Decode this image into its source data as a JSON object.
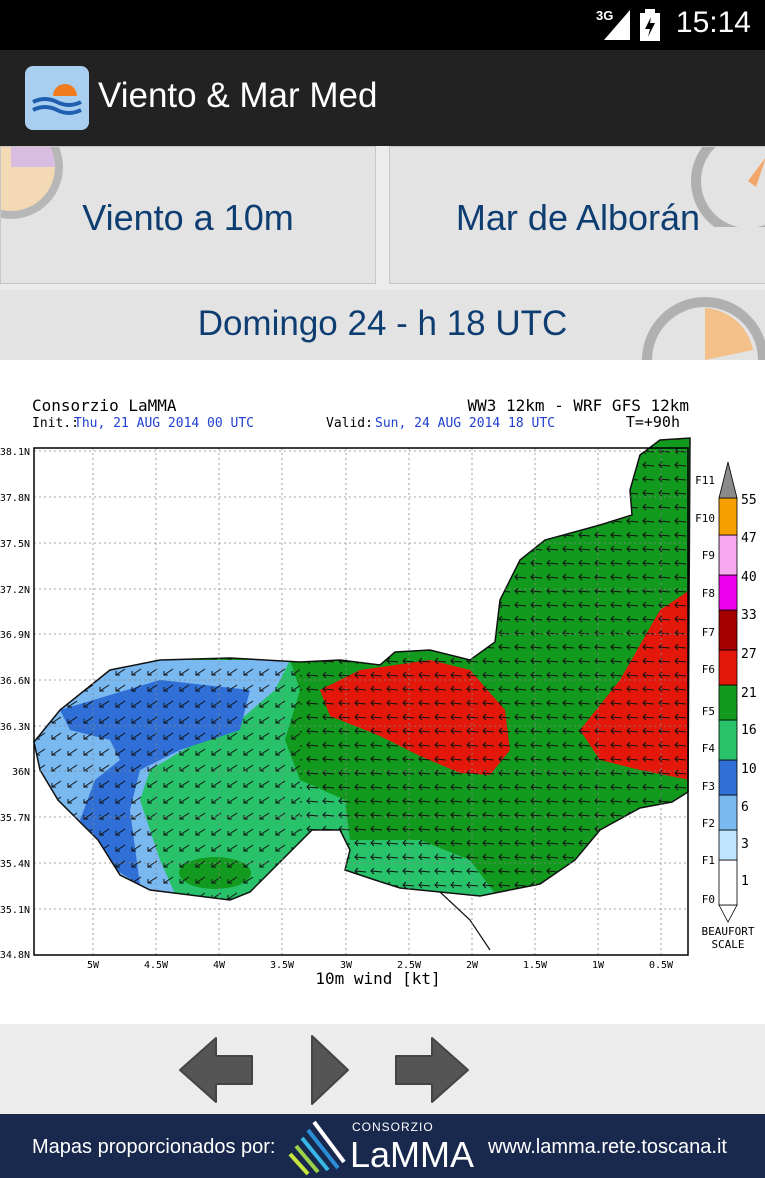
{
  "status_bar": {
    "network": "3G",
    "time": "15:14"
  },
  "app": {
    "title": "Viento & Mar Med"
  },
  "buttons": {
    "wind": "Viento a 10m",
    "sea": "Mar de Alborán"
  },
  "date_label": "Domingo 24 - h 18 UTC",
  "map": {
    "header_left": "Consorzio LaMMA",
    "header_right": "WW3 12km - WRF GFS 12km",
    "init_label": "Init.:",
    "init_value": "Thu, 21 AUG 2014   00 UTC",
    "valid_label": "Valid:",
    "valid_value": "Sun, 24 AUG 2014   18 UTC",
    "forecast_time": "T=+90h",
    "x_axis_label": "10m wind [kt]",
    "lat_ticks": [
      "38.1N",
      "37.8N",
      "37.5N",
      "37.2N",
      "36.9N",
      "36.6N",
      "36.3N",
      "36N",
      "35.7N",
      "35.4N",
      "35.1N",
      "34.8N"
    ],
    "lon_ticks": [
      "5W",
      "4.5W",
      "4W",
      "3.5W",
      "3W",
      "2.5W",
      "2W",
      "1.5W",
      "1W",
      "0.5W"
    ],
    "scale": {
      "title_line1": "BEAUFORT",
      "title_line2": "SCALE",
      "bands": [
        {
          "beaufort": "F0",
          "color": "#ffffff"
        },
        {
          "beaufort": "F1",
          "color": "#bfe4ff"
        },
        {
          "beaufort": "F2",
          "color": "#7ab8f0"
        },
        {
          "beaufort": "F3",
          "color": "#2f6fd6"
        },
        {
          "beaufort": "F4",
          "color": "#27c26a"
        },
        {
          "beaufort": "F5",
          "color": "#129a1e"
        },
        {
          "beaufort": "F6",
          "color": "#e3170a"
        },
        {
          "beaufort": "F7",
          "color": "#a40000"
        },
        {
          "beaufort": "F8",
          "color": "#ee00ee"
        },
        {
          "beaufort": "F9",
          "color": "#f7a8ee"
        },
        {
          "beaufort": "F10",
          "color": "#f5a000"
        },
        {
          "beaufort": "F11",
          "color": "#8a8a8a"
        }
      ],
      "thresholds": [
        "1",
        "3",
        "6",
        "10",
        "16",
        "21",
        "27",
        "33",
        "40",
        "47",
        "55"
      ]
    }
  },
  "nav": {
    "prev": "previous",
    "play": "play",
    "next": "next"
  },
  "footer": {
    "credit": "Mapas proporcionados por:",
    "logo_small": "CONSORZIO",
    "logo_big": "LaMMA",
    "site": "www.lamma.rete.toscana.it"
  },
  "colors": {
    "actionbar": "#222222",
    "button_text": "#0e3d72",
    "footer": "#19284d"
  }
}
